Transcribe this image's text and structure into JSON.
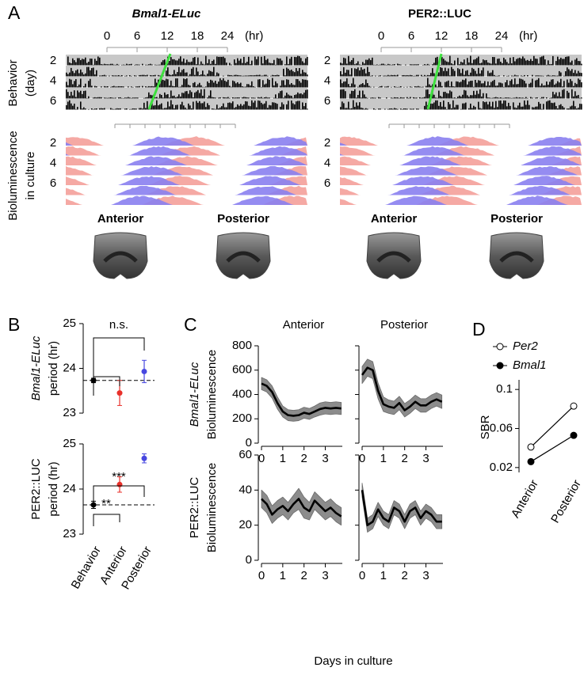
{
  "panel_labels": [
    "A",
    "B",
    "C",
    "D"
  ],
  "panel_a": {
    "titles": [
      "Bmal1-ELuc",
      "PER2::LUC"
    ],
    "xticks": [
      0,
      6,
      12,
      18,
      24
    ],
    "xunit": "(hr)",
    "day_ticks": [
      2,
      4,
      6
    ],
    "row_labels": [
      [
        "Behavior",
        "(day)"
      ],
      [
        "Bioluminescence",
        "in culture"
      ]
    ],
    "regions": [
      "Anterior",
      "Posterior"
    ],
    "region_colors": [
      "#f08080",
      "#7b72e6"
    ]
  },
  "chart_data": [
    {
      "type": "errorbar",
      "ylabel": [
        "Bmal1-ELuc",
        "period (hr)"
      ],
      "values": [
        23.73,
        23.45,
        23.93
      ],
      "errors": [
        0.05,
        0.28,
        0.25
      ],
      "colors": [
        "#000000",
        "#e8302a",
        "#4747e0"
      ],
      "ylim": [
        22.9,
        25.1
      ],
      "yticks": [
        23,
        24,
        25
      ],
      "annotations": [
        "n.s."
      ]
    },
    {
      "type": "errorbar",
      "ylabel": [
        "PER2::LUC",
        "period (hr)"
      ],
      "categories": [
        "Behavior",
        "Anterior",
        "Posterior"
      ],
      "category_colors": [
        "#000000",
        "#f08080",
        "#7b72e6"
      ],
      "values": [
        23.65,
        24.1,
        24.68
      ],
      "errors": [
        0.08,
        0.17,
        0.1
      ],
      "colors": [
        "#000000",
        "#e8302a",
        "#4747e0"
      ],
      "ylim": [
        22.9,
        25.1
      ],
      "yticks": [
        23,
        24,
        25
      ],
      "annotations": [
        "**",
        "***"
      ]
    },
    {
      "type": "line",
      "title": "Anterior",
      "ylabel": [
        "Bmal1-ELuc",
        "Bioluminescence"
      ],
      "x": [
        0,
        0.25,
        0.5,
        0.75,
        1,
        1.25,
        1.5,
        1.75,
        2,
        2.25,
        2.5,
        2.75,
        3,
        3.25,
        3.5,
        3.75
      ],
      "values": [
        490,
        470,
        420,
        330,
        260,
        230,
        225,
        230,
        250,
        240,
        260,
        280,
        290,
        285,
        290,
        285
      ],
      "error": [
        50,
        50,
        50,
        50,
        45,
        45,
        45,
        45,
        45,
        45,
        45,
        50,
        50,
        50,
        50,
        50
      ],
      "xlim": [
        0,
        3.8
      ],
      "xticks": [
        0,
        1,
        2,
        3
      ],
      "ylim": [
        0,
        800
      ],
      "yticks": [
        0,
        200,
        400,
        600,
        800
      ],
      "color": "#000000",
      "band_color": "#8c8c8c"
    },
    {
      "type": "line",
      "title": "Posterior",
      "x": [
        0,
        0.25,
        0.5,
        0.75,
        1,
        1.25,
        1.5,
        1.75,
        2,
        2.25,
        2.5,
        2.75,
        3,
        3.25,
        3.5,
        3.75
      ],
      "values": [
        560,
        620,
        600,
        430,
        320,
        300,
        290,
        330,
        270,
        300,
        340,
        310,
        310,
        340,
        360,
        340
      ],
      "error": [
        70,
        70,
        70,
        65,
        60,
        55,
        55,
        55,
        55,
        55,
        55,
        55,
        55,
        55,
        55,
        55
      ],
      "xlim": [
        0,
        3.8
      ],
      "xticks": [
        0,
        1,
        2,
        3
      ],
      "ylim": [
        0,
        800
      ],
      "yticks": [
        0,
        200,
        400,
        600,
        800
      ],
      "color": "#000000",
      "band_color": "#8c8c8c"
    },
    {
      "type": "line",
      "ylabel": [
        "PER2::LUC",
        "Bioluminescence"
      ],
      "x": [
        0,
        0.25,
        0.5,
        0.75,
        1,
        1.25,
        1.5,
        1.75,
        2,
        2.25,
        2.5,
        2.75,
        3,
        3.25,
        3.5,
        3.75
      ],
      "values": [
        35,
        32,
        26,
        29,
        31,
        28,
        32,
        35,
        30,
        28,
        34,
        31,
        28,
        30,
        27,
        25
      ],
      "error": [
        5,
        5,
        5,
        5,
        5,
        5,
        5,
        6,
        6,
        5,
        5,
        5,
        5,
        5,
        5,
        5
      ],
      "xlim": [
        0,
        3.8
      ],
      "xticks": [
        0,
        1,
        2,
        3
      ],
      "ylim": [
        0,
        60
      ],
      "yticks": [
        0,
        20,
        40,
        60
      ],
      "color": "#000000",
      "band_color": "#8c8c8c"
    },
    {
      "type": "line",
      "xlabel": "Days in culture",
      "x": [
        0,
        0.25,
        0.5,
        0.75,
        1,
        1.25,
        1.5,
        1.75,
        2,
        2.25,
        2.5,
        2.75,
        3,
        3.25,
        3.5,
        3.75
      ],
      "values": [
        40,
        20,
        22,
        29,
        24,
        22,
        30,
        28,
        22,
        28,
        30,
        24,
        28,
        26,
        22,
        22
      ],
      "error": [
        4,
        4,
        4,
        4,
        4,
        4,
        4,
        4,
        4,
        4,
        4,
        4,
        4,
        4,
        4,
        4
      ],
      "xlim": [
        0,
        3.8
      ],
      "xticks": [
        0,
        1,
        2,
        3
      ],
      "ylim": [
        0,
        60
      ],
      "yticks": [
        0,
        20,
        40,
        60
      ],
      "color": "#000000",
      "band_color": "#8c8c8c"
    },
    {
      "type": "dotline",
      "ylabel": "SBR",
      "categories": [
        "Anterior",
        "Posterior"
      ],
      "series": [
        {
          "name": "Per2",
          "values": [
            0.041,
            0.083
          ],
          "marker": "open"
        },
        {
          "name": "Bmal1",
          "values": [
            0.026,
            0.053
          ],
          "marker": "filled"
        }
      ],
      "ylim": [
        0.015,
        0.105
      ],
      "yticks": [
        0.02,
        0.06,
        0.1
      ]
    }
  ]
}
